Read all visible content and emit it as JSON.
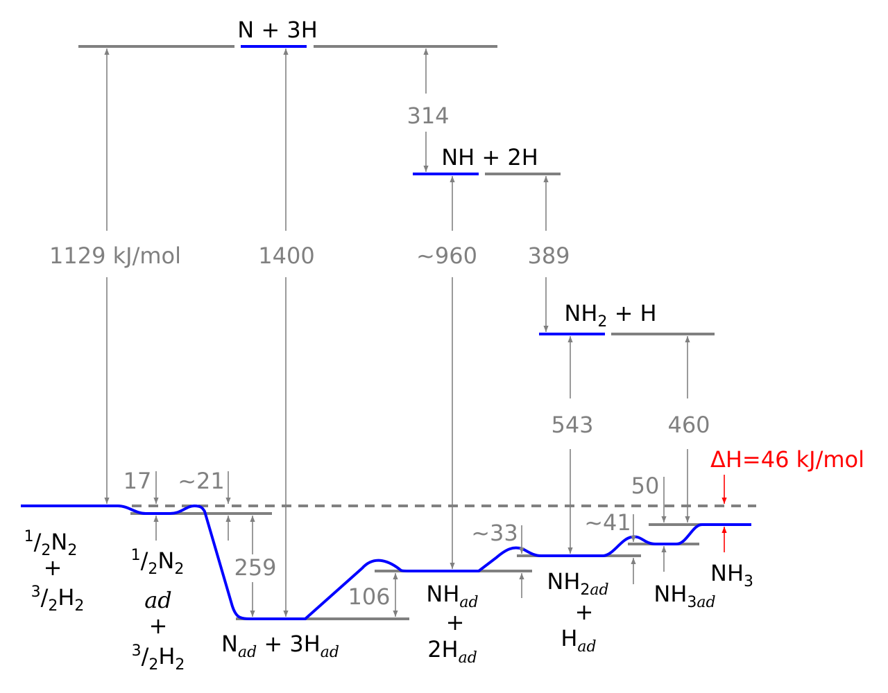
{
  "colors": {
    "level": "#808080",
    "path": "#0000ff",
    "label": "#000000",
    "energy": "#808080",
    "delta": "#ff0000"
  },
  "states": {
    "n_3h": "N + 3H",
    "nh_2h": "NH + 2H",
    "nh2_h_a": "NH",
    "nh2_h_sub": "2",
    "nh2_h_b": " + H",
    "nh3": {
      "main": "NH",
      "sub": "3"
    },
    "reactants": {
      "l1_sup": "1",
      "l1_main": "/",
      "l1_sub": "2",
      "l1_end": "N",
      "l1_sub2": "2",
      "plus": "+",
      "l2_sup": "3",
      "l2_main": "/",
      "l2_sub": "2",
      "l2_end": "H",
      "l2_sub2": "2"
    },
    "n2_ad": {
      "l1_sup": "1",
      "l1_main": "/",
      "l1_sub": "2",
      "l1_end": "N",
      "l1_sub2": "2",
      "ad": "ad",
      "plus": "+",
      "l2_sup": "3",
      "l2_main": "/",
      "l2_sub": "2",
      "l2_end": "H",
      "l2_sub2": "2"
    },
    "n_ad": {
      "a": "N",
      "a_sub": "ad",
      "b": " + 3H",
      "b_sub": "ad"
    },
    "nh_ad": {
      "a": "NH",
      "a_sub": "ad",
      "plus": "+",
      "b": "2H",
      "b_sub": "ad"
    },
    "nh2_ad": {
      "a": "NH",
      "a_sub": "2",
      "a_sub2": "ad",
      "plus": "+",
      "b": "H",
      "b_sub": "ad"
    },
    "nh3_ad": {
      "a": "NH",
      "a_sub": "3",
      "a_sub2": "ad"
    }
  },
  "energies": {
    "e1129": "1129 kJ/mol",
    "e1400": "1400",
    "e314": "314",
    "e960": "~960",
    "e389": "389",
    "e543": "543",
    "e460": "460",
    "e17": "17",
    "e21": "~21",
    "e259": "259",
    "e106": "106",
    "e33": "~33",
    "e41": "~41",
    "e50": "50"
  },
  "delta_h": "ΔH=46 kJ/mol"
}
